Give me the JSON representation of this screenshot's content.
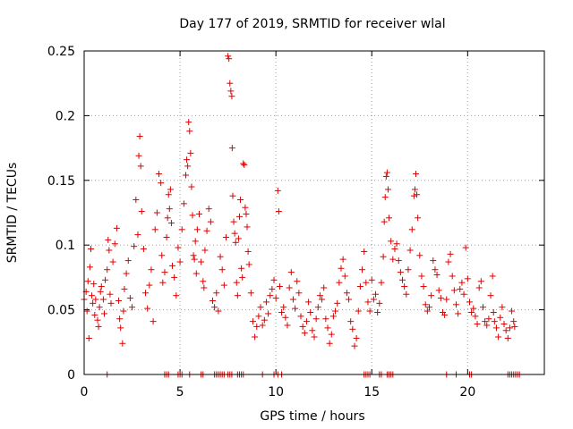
{
  "chart_data": {
    "type": "scatter",
    "title": "Day 177 of 2019, SRMTID for receiver wlal",
    "xlabel": "GPS time / hours",
    "ylabel": "SRMTID / TECUs",
    "xlim": [
      0,
      24
    ],
    "ylim": [
      0,
      0.25
    ],
    "xticks": [
      0,
      5,
      10,
      15,
      20
    ],
    "xtick_labels": [
      "0",
      "5",
      "10",
      "15",
      "20"
    ],
    "yticks": [
      0,
      0.05,
      0.1,
      0.15,
      0.2,
      0.25
    ],
    "ytick_labels": [
      "0",
      "0.05",
      "0.1",
      "0.15",
      "0.2",
      "0.25"
    ],
    "grid": true,
    "marker": "+",
    "color": "#e00000",
    "series": [
      {
        "name": "SRMTID",
        "points": [
          [
            0.0,
            0.058
          ],
          [
            0.1,
            0.064
          ],
          [
            0.15,
            0.049
          ],
          [
            0.2,
            0.072
          ],
          [
            0.25,
            0.028
          ],
          [
            0.3,
            0.083
          ],
          [
            0.35,
            0.097
          ],
          [
            0.4,
            0.061
          ],
          [
            0.45,
            0.055
          ],
          [
            0.5,
            0.07
          ],
          [
            0.55,
            0.046
          ],
          [
            0.6,
            0.058
          ],
          [
            0.7,
            0.042
          ],
          [
            0.75,
            0.037
          ],
          [
            0.8,
            0.052
          ],
          [
            0.85,
            0.064
          ],
          [
            0.9,
            0.068
          ],
          [
            1.0,
            0.058
          ],
          [
            1.05,
            0.047
          ],
          [
            1.1,
            0.073
          ],
          [
            1.2,
            0.081
          ],
          [
            1.25,
            0.104
          ],
          [
            1.3,
            0.096
          ],
          [
            1.35,
            0.062
          ],
          [
            1.4,
            0.055
          ],
          [
            1.5,
            0.087
          ],
          [
            1.6,
            0.101
          ],
          [
            1.7,
            0.113
          ],
          [
            1.8,
            0.057
          ],
          [
            1.85,
            0.043
          ],
          [
            1.9,
            0.036
          ],
          [
            2.0,
            0.024
          ],
          [
            2.05,
            0.049
          ],
          [
            2.1,
            0.066
          ],
          [
            2.2,
            0.078
          ],
          [
            2.3,
            0.088
          ],
          [
            2.4,
            0.059
          ],
          [
            2.5,
            0.052
          ],
          [
            2.6,
            0.099
          ],
          [
            2.7,
            0.135
          ],
          [
            2.8,
            0.108
          ],
          [
            2.85,
            0.169
          ],
          [
            2.9,
            0.184
          ],
          [
            2.95,
            0.161
          ],
          [
            3.0,
            0.126
          ],
          [
            3.1,
            0.097
          ],
          [
            3.2,
            0.063
          ],
          [
            3.3,
            0.051
          ],
          [
            3.4,
            0.069
          ],
          [
            3.5,
            0.081
          ],
          [
            3.6,
            0.041
          ],
          [
            3.7,
            0.112
          ],
          [
            3.8,
            0.125
          ],
          [
            3.9,
            0.155
          ],
          [
            4.0,
            0.148
          ],
          [
            4.05,
            0.092
          ],
          [
            4.1,
            0.071
          ],
          [
            4.2,
            0.079
          ],
          [
            4.3,
            0.106
          ],
          [
            4.35,
            0.121
          ],
          [
            4.4,
            0.139
          ],
          [
            4.45,
            0.128
          ],
          [
            4.5,
            0.143
          ],
          [
            4.55,
            0.117
          ],
          [
            4.6,
            0.084
          ],
          [
            4.7,
            0.075
          ],
          [
            4.8,
            0.061
          ],
          [
            4.9,
            0.098
          ],
          [
            5.0,
            0.087
          ],
          [
            5.1,
            0.112
          ],
          [
            5.2,
            0.132
          ],
          [
            5.3,
            0.154
          ],
          [
            5.35,
            0.166
          ],
          [
            5.4,
            0.161
          ],
          [
            5.45,
            0.195
          ],
          [
            5.5,
            0.188
          ],
          [
            5.55,
            0.171
          ],
          [
            5.6,
            0.145
          ],
          [
            5.65,
            0.123
          ],
          [
            5.7,
            0.092
          ],
          [
            5.75,
            0.089
          ],
          [
            5.8,
            0.103
          ],
          [
            5.85,
            0.078
          ],
          [
            5.9,
            0.112
          ],
          [
            6.0,
            0.124
          ],
          [
            6.1,
            0.087
          ],
          [
            6.2,
            0.072
          ],
          [
            6.25,
            0.067
          ],
          [
            6.3,
            0.096
          ],
          [
            6.4,
            0.111
          ],
          [
            6.5,
            0.128
          ],
          [
            6.6,
            0.118
          ],
          [
            6.7,
            0.057
          ],
          [
            6.8,
            0.052
          ],
          [
            6.9,
            0.063
          ],
          [
            7.0,
            0.049
          ],
          [
            7.1,
            0.091
          ],
          [
            7.2,
            0.081
          ],
          [
            7.3,
            0.069
          ],
          [
            7.4,
            0.106
          ],
          [
            7.5,
            0.246
          ],
          [
            7.55,
            0.244
          ],
          [
            7.6,
            0.225
          ],
          [
            7.65,
            0.219
          ],
          [
            7.7,
            0.215
          ],
          [
            7.72,
            0.175
          ],
          [
            7.75,
            0.138
          ],
          [
            7.8,
            0.118
          ],
          [
            7.85,
            0.109
          ],
          [
            7.9,
            0.102
          ],
          [
            7.95,
            0.071
          ],
          [
            8.0,
            0.061
          ],
          [
            8.05,
            0.105
          ],
          [
            8.1,
            0.122
          ],
          [
            8.15,
            0.135
          ],
          [
            8.2,
            0.082
          ],
          [
            8.25,
            0.075
          ],
          [
            8.3,
            0.163
          ],
          [
            8.35,
            0.162
          ],
          [
            8.4,
            0.129
          ],
          [
            8.45,
            0.124
          ],
          [
            8.5,
            0.114
          ],
          [
            8.55,
            0.095
          ],
          [
            8.6,
            0.085
          ],
          [
            8.7,
            0.063
          ],
          [
            8.8,
            0.041
          ],
          [
            8.9,
            0.029
          ],
          [
            9.0,
            0.037
          ],
          [
            9.1,
            0.045
          ],
          [
            9.2,
            0.052
          ],
          [
            9.3,
            0.038
          ],
          [
            9.4,
            0.042
          ],
          [
            9.5,
            0.056
          ],
          [
            9.6,
            0.047
          ],
          [
            9.7,
            0.061
          ],
          [
            9.8,
            0.066
          ],
          [
            9.9,
            0.073
          ],
          [
            10.0,
            0.059
          ],
          [
            10.1,
            0.142
          ],
          [
            10.15,
            0.126
          ],
          [
            10.2,
            0.068
          ],
          [
            10.3,
            0.048
          ],
          [
            10.4,
            0.052
          ],
          [
            10.5,
            0.044
          ],
          [
            10.6,
            0.038
          ],
          [
            10.7,
            0.067
          ],
          [
            10.8,
            0.079
          ],
          [
            10.9,
            0.058
          ],
          [
            11.0,
            0.051
          ],
          [
            11.1,
            0.072
          ],
          [
            11.2,
            0.063
          ],
          [
            11.3,
            0.045
          ],
          [
            11.4,
            0.037
          ],
          [
            11.5,
            0.032
          ],
          [
            11.6,
            0.041
          ],
          [
            11.7,
            0.056
          ],
          [
            11.8,
            0.048
          ],
          [
            11.9,
            0.034
          ],
          [
            12.0,
            0.029
          ],
          [
            12.1,
            0.043
          ],
          [
            12.2,
            0.052
          ],
          [
            12.3,
            0.061
          ],
          [
            12.4,
            0.058
          ],
          [
            12.5,
            0.067
          ],
          [
            12.6,
            0.043
          ],
          [
            12.7,
            0.036
          ],
          [
            12.8,
            0.024
          ],
          [
            12.9,
            0.031
          ],
          [
            13.0,
            0.045
          ],
          [
            13.1,
            0.049
          ],
          [
            13.2,
            0.055
          ],
          [
            13.3,
            0.071
          ],
          [
            13.4,
            0.082
          ],
          [
            13.5,
            0.089
          ],
          [
            13.6,
            0.076
          ],
          [
            13.7,
            0.063
          ],
          [
            13.8,
            0.058
          ],
          [
            13.9,
            0.041
          ],
          [
            14.0,
            0.035
          ],
          [
            14.1,
            0.022
          ],
          [
            14.2,
            0.028
          ],
          [
            14.3,
            0.049
          ],
          [
            14.4,
            0.068
          ],
          [
            14.5,
            0.081
          ],
          [
            14.6,
            0.095
          ],
          [
            14.7,
            0.071
          ],
          [
            14.8,
            0.056
          ],
          [
            14.9,
            0.049
          ],
          [
            15.0,
            0.073
          ],
          [
            15.1,
            0.058
          ],
          [
            15.2,
            0.062
          ],
          [
            15.3,
            0.048
          ],
          [
            15.4,
            0.055
          ],
          [
            15.5,
            0.071
          ],
          [
            15.6,
            0.091
          ],
          [
            15.65,
            0.118
          ],
          [
            15.7,
            0.137
          ],
          [
            15.75,
            0.153
          ],
          [
            15.8,
            0.156
          ],
          [
            15.85,
            0.143
          ],
          [
            15.9,
            0.121
          ],
          [
            16.0,
            0.103
          ],
          [
            16.1,
            0.089
          ],
          [
            16.2,
            0.097
          ],
          [
            16.3,
            0.101
          ],
          [
            16.4,
            0.088
          ],
          [
            16.5,
            0.079
          ],
          [
            16.6,
            0.073
          ],
          [
            16.7,
            0.068
          ],
          [
            16.8,
            0.062
          ],
          [
            16.9,
            0.081
          ],
          [
            17.0,
            0.096
          ],
          [
            17.1,
            0.112
          ],
          [
            17.2,
            0.138
          ],
          [
            17.25,
            0.143
          ],
          [
            17.3,
            0.155
          ],
          [
            17.35,
            0.139
          ],
          [
            17.4,
            0.121
          ],
          [
            17.5,
            0.092
          ],
          [
            17.6,
            0.076
          ],
          [
            17.7,
            0.068
          ],
          [
            17.8,
            0.054
          ],
          [
            17.9,
            0.049
          ],
          [
            18.0,
            0.052
          ],
          [
            18.1,
            0.061
          ],
          [
            18.2,
            0.088
          ],
          [
            18.3,
            0.081
          ],
          [
            18.4,
            0.077
          ],
          [
            18.5,
            0.065
          ],
          [
            18.6,
            0.059
          ],
          [
            18.7,
            0.048
          ],
          [
            18.8,
            0.046
          ],
          [
            18.9,
            0.058
          ],
          [
            19.0,
            0.087
          ],
          [
            19.1,
            0.093
          ],
          [
            19.2,
            0.076
          ],
          [
            19.3,
            0.065
          ],
          [
            19.4,
            0.054
          ],
          [
            19.5,
            0.047
          ],
          [
            19.6,
            0.066
          ],
          [
            19.7,
            0.071
          ],
          [
            19.8,
            0.062
          ],
          [
            19.9,
            0.098
          ],
          [
            20.0,
            0.074
          ],
          [
            20.1,
            0.056
          ],
          [
            20.2,
            0.048
          ],
          [
            20.3,
            0.051
          ],
          [
            20.4,
            0.045
          ],
          [
            20.5,
            0.039
          ],
          [
            20.6,
            0.067
          ],
          [
            20.7,
            0.072
          ],
          [
            20.8,
            0.052
          ],
          [
            20.9,
            0.041
          ],
          [
            21.0,
            0.038
          ],
          [
            21.1,
            0.043
          ],
          [
            21.2,
            0.061
          ],
          [
            21.3,
            0.076
          ],
          [
            21.35,
            0.048
          ],
          [
            21.4,
            0.041
          ],
          [
            21.5,
            0.036
          ],
          [
            21.6,
            0.029
          ],
          [
            21.7,
            0.044
          ],
          [
            21.8,
            0.052
          ],
          [
            21.9,
            0.039
          ],
          [
            22.0,
            0.034
          ],
          [
            22.1,
            0.028
          ],
          [
            22.2,
            0.036
          ],
          [
            22.3,
            0.049
          ],
          [
            22.4,
            0.041
          ],
          [
            22.45,
            0.037
          ]
        ]
      }
    ],
    "zero_marks_x": [
      1.2,
      4.2,
      4.3,
      4.4,
      4.9,
      5.0,
      5.1,
      5.5,
      6.1,
      6.2,
      6.8,
      6.9,
      7.0,
      7.1,
      7.2,
      7.3,
      7.5,
      7.6,
      7.7,
      8.0,
      8.1,
      8.2,
      8.3,
      9.3,
      9.9,
      10.1,
      10.3,
      14.6,
      14.7,
      14.8,
      14.9,
      15.4,
      15.5,
      15.8,
      15.9,
      16.0,
      16.1,
      18.9,
      19.4,
      20.1,
      20.2,
      22.1,
      22.2,
      22.3,
      22.4,
      22.5,
      22.6,
      22.7
    ]
  }
}
